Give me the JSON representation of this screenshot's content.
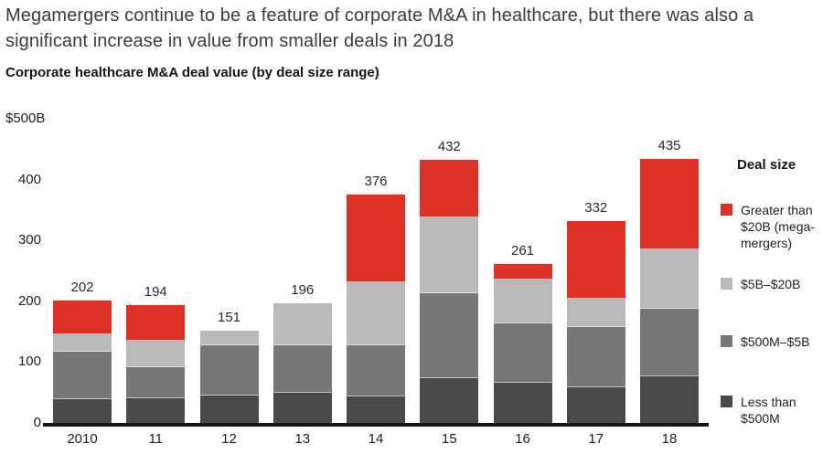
{
  "page": {
    "title": "Megamergers continue to be a feature of corporate M&A in healthcare, but there was also a significant increase in value from smaller deals in 2018",
    "subtitle": "Corporate healthcare M&A deal value (by deal size range)",
    "axis_unit_label": "$500B"
  },
  "legend": {
    "title": "Deal size",
    "items": [
      {
        "label": "Greater than $20B (mega-mergers)",
        "color": "#DF3125"
      },
      {
        "label": "$5B–$20B",
        "color": "#B9B9B9"
      },
      {
        "label": "$500M–$5B",
        "color": "#777777"
      },
      {
        "label": "Less than $500M",
        "color": "#4A4A4A"
      }
    ]
  },
  "chart_data": {
    "type": "bar",
    "stacked": true,
    "title": "Corporate healthcare M&A deal value (by deal size range)",
    "categories": [
      "2010",
      "11",
      "12",
      "13",
      "14",
      "15",
      "16",
      "17",
      "18"
    ],
    "series": [
      {
        "name": "Less than $500M",
        "color": "#4A4A4A",
        "values": [
          39,
          40,
          45,
          49,
          44,
          73,
          66,
          59,
          77
        ]
      },
      {
        "name": "$500M–$5B",
        "color": "#777777",
        "values": [
          78,
          51,
          82,
          78,
          84,
          139,
          98,
          99,
          111
        ]
      },
      {
        "name": "$5B–$20B",
        "color": "#B9B9B9",
        "values": [
          29,
          44,
          24,
          69,
          104,
          125,
          72,
          46,
          98
        ]
      },
      {
        "name": "Greater than $20B (mega-mergers)",
        "color": "#DF3125",
        "values": [
          56,
          59,
          0,
          0,
          144,
          95,
          25,
          128,
          149
        ]
      }
    ],
    "totals": [
      202,
      194,
      151,
      196,
      376,
      432,
      261,
      332,
      435
    ],
    "xlabel": "",
    "ylabel": "$500B",
    "yticks": [
      0,
      100,
      200,
      300,
      400
    ],
    "ylim": [
      0,
      500
    ],
    "grid": false,
    "legend_position": "right",
    "total_labels_shown": true
  }
}
